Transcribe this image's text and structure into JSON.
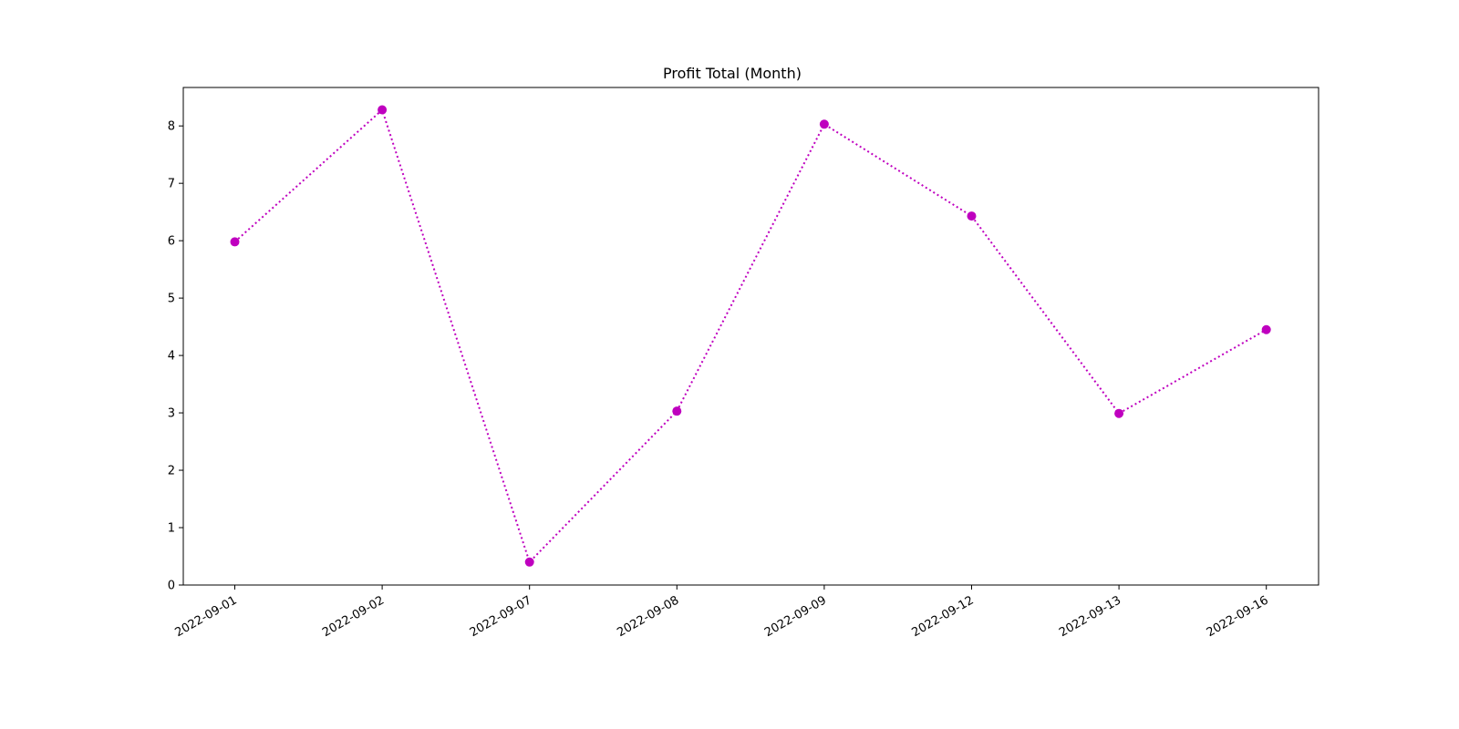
{
  "chart_data": {
    "type": "line",
    "title": "Profit Total (Month)",
    "xlabel": "",
    "ylabel": "",
    "categories": [
      "2022-09-01",
      "2022-09-02",
      "2022-09-07",
      "2022-09-08",
      "2022-09-09",
      "2022-09-12",
      "2022-09-13",
      "2022-09-16"
    ],
    "series": [
      {
        "values": [
          5.98,
          8.28,
          0.4,
          3.03,
          8.03,
          6.43,
          2.99,
          4.45
        ],
        "color": "#bf00bf",
        "line_style": "dotted",
        "marker": "circle"
      }
    ],
    "ylim": [
      0,
      8.67
    ],
    "yticks": [
      0,
      1,
      2,
      3,
      4,
      5,
      6,
      7,
      8
    ],
    "grid": false,
    "legend": "none"
  }
}
